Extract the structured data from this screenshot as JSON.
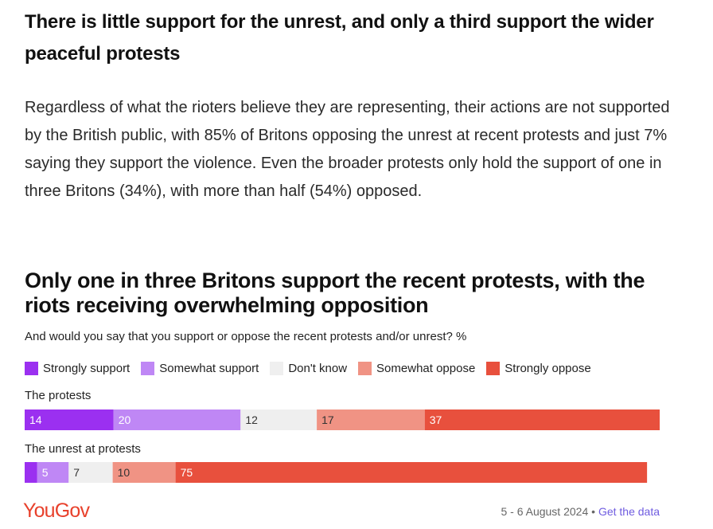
{
  "article": {
    "headline": "There is little support for the unrest, and only a third support the wider peaceful protests",
    "body": "Regardless of what the rioters believe they are representing, their actions are not supported by the British public, with 85% of Britons opposing the unrest at recent protests and just 7% saying they support the violence. Even the broader protests only hold the support of one in three Britons (34%), with more than half (54%) opposed."
  },
  "chart_data": {
    "type": "bar",
    "orientation": "horizontal-stacked-100",
    "title": "Only one in three Britons support the recent protests, with the riots receiving overwhelming opposition",
    "subtitle": "And would you say that you support or oppose the recent protests and/or unrest? %",
    "legend_position": "top",
    "categories": [
      "The protests",
      "The unrest at protests"
    ],
    "series": [
      {
        "name": "Strongly support",
        "color": "#9b30f0",
        "values": [
          14,
          2
        ]
      },
      {
        "name": "Somewhat support",
        "color": "#bf87f5",
        "values": [
          20,
          5
        ]
      },
      {
        "name": "Don't know",
        "color": "#efefef",
        "values": [
          12,
          7
        ]
      },
      {
        "name": "Somewhat oppose",
        "color": "#f09384",
        "values": [
          17,
          10
        ]
      },
      {
        "name": "Strongly oppose",
        "color": "#e8503d",
        "values": [
          37,
          75
        ]
      }
    ],
    "data_labels": [
      [
        "14",
        "20",
        "12",
        "17",
        "37"
      ],
      [
        "",
        "5",
        "7",
        "10",
        "75"
      ]
    ],
    "xlim": [
      0,
      100
    ]
  },
  "footer": {
    "brand": "YouGov",
    "date": "5 - 6 August 2024",
    "separator": "•",
    "link": "Get the data"
  }
}
